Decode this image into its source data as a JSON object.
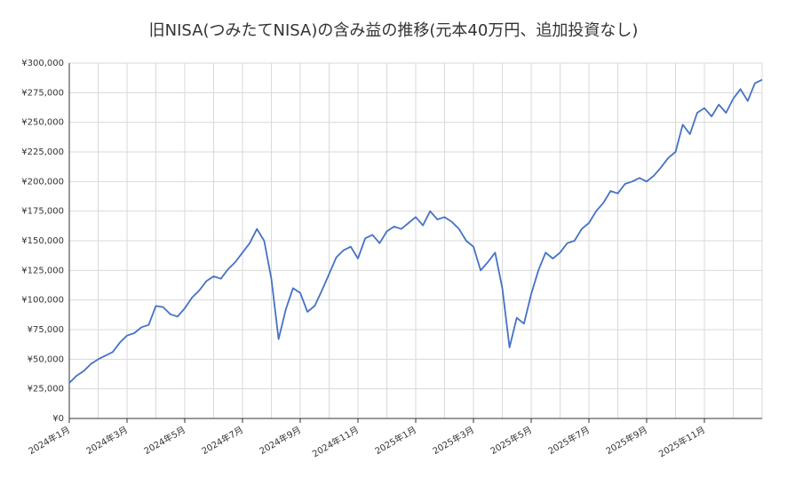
{
  "chart_data": {
    "type": "line",
    "title": "旧NISA(つみたてNISA)の含み益の推移(元本40万円、追加投資なし)",
    "categories": [
      "2024年1月",
      null,
      null,
      null,
      null,
      null,
      null,
      null,
      "2024年3月",
      null,
      null,
      null,
      null,
      null,
      null,
      null,
      "2024年5月",
      null,
      null,
      null,
      null,
      null,
      null,
      null,
      "2024年7月",
      null,
      null,
      null,
      null,
      null,
      null,
      null,
      "2024年9月",
      null,
      null,
      null,
      null,
      null,
      null,
      null,
      "2024年11月",
      null,
      null,
      null,
      null,
      null,
      null,
      null,
      "2025年1月",
      null,
      null,
      null,
      null,
      null,
      null,
      null,
      "2025年3月",
      null,
      null,
      null,
      null,
      null,
      null,
      null,
      "2025年5月",
      null,
      null,
      null,
      null,
      null,
      null,
      null,
      "2025年7月",
      null,
      null,
      null,
      null,
      null,
      null,
      null,
      "2025年9月",
      null,
      null,
      null,
      null,
      null,
      null,
      null,
      "2025年11月",
      null,
      null,
      null,
      null,
      null,
      null,
      null,
      null
    ],
    "series": [
      {
        "color": "#4472c4",
        "values": [
          30000,
          36000,
          40000,
          46000,
          50000,
          53000,
          56000,
          64000,
          70000,
          72000,
          77000,
          79000,
          95000,
          94000,
          88000,
          86000,
          93000,
          102000,
          108000,
          116000,
          120000,
          118000,
          126000,
          132000,
          140000,
          148000,
          160000,
          150000,
          118000,
          67000,
          92000,
          110000,
          106000,
          90000,
          95000,
          108000,
          122000,
          136000,
          142000,
          145000,
          135000,
          152000,
          155000,
          148000,
          158000,
          162000,
          160000,
          165000,
          170000,
          163000,
          175000,
          168000,
          170000,
          166000,
          160000,
          150000,
          145000,
          125000,
          132000,
          140000,
          110000,
          60000,
          85000,
          80000,
          105000,
          125000,
          140000,
          135000,
          140000,
          148000,
          150000,
          160000,
          165000,
          175000,
          182000,
          192000,
          190000,
          198000,
          200000,
          203000,
          200000,
          205000,
          212000,
          220000,
          225000,
          248000,
          240000,
          258000,
          262000,
          255000,
          265000,
          258000,
          270000,
          278000,
          268000,
          283000,
          286000
        ]
      }
    ],
    "ylim": [
      0,
      300000
    ],
    "yticks": [
      {
        "value": 0,
        "label": "¥0"
      },
      {
        "value": 25000,
        "label": "¥25,000"
      },
      {
        "value": 50000,
        "label": "¥50,000"
      },
      {
        "value": 75000,
        "label": "¥75,000"
      },
      {
        "value": 100000,
        "label": "¥100,000"
      },
      {
        "value": 125000,
        "label": "¥125,000"
      },
      {
        "value": 150000,
        "label": "¥150,000"
      },
      {
        "value": 175000,
        "label": "¥175,000"
      },
      {
        "value": 200000,
        "label": "¥200,000"
      },
      {
        "value": 225000,
        "label": "¥225,000"
      },
      {
        "value": 250000,
        "label": "¥250,000"
      },
      {
        "value": 275000,
        "label": "¥275,000"
      },
      {
        "value": 300000,
        "label": "¥300,000"
      }
    ],
    "grid": true
  }
}
